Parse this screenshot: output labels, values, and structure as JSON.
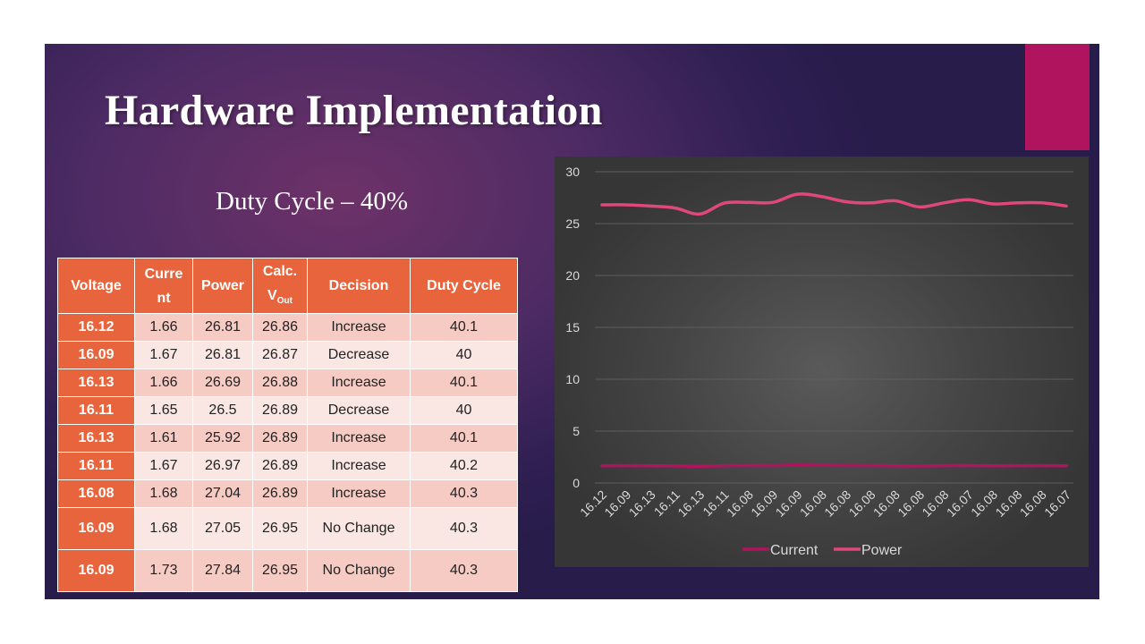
{
  "title": "Hardware Implementation",
  "subtitle": "Duty Cycle – 40%",
  "colors": {
    "accent": "#b0145f",
    "table_header": "#e8643c",
    "current_line": "#b0145f",
    "power_line": "#e0477a"
  },
  "table": {
    "headers": {
      "voltage": "Voltage",
      "current": "Current",
      "current_line1": "Curre",
      "current_line2": "nt",
      "power": "Power",
      "calc_main": "Calc.",
      "calc_v": "V",
      "calc_sub": "Out",
      "decision": "Decision",
      "duty_cycle": "Duty Cycle"
    },
    "rows": [
      [
        "16.12",
        "1.66",
        "26.81",
        "26.86",
        "Increase",
        "40.1"
      ],
      [
        "16.09",
        "1.67",
        "26.81",
        "26.87",
        "Decrease",
        "40"
      ],
      [
        "16.13",
        "1.66",
        "26.69",
        "26.88",
        "Increase",
        "40.1"
      ],
      [
        "16.11",
        "1.65",
        "26.5",
        "26.89",
        "Decrease",
        "40"
      ],
      [
        "16.13",
        "1.61",
        "25.92",
        "26.89",
        "Increase",
        "40.1"
      ],
      [
        "16.11",
        "1.67",
        "26.97",
        "26.89",
        "Increase",
        "40.2"
      ],
      [
        "16.08",
        "1.68",
        "27.04",
        "26.89",
        "Increase",
        "40.3"
      ],
      [
        "16.09",
        "1.68",
        "27.05",
        "26.95",
        "No Change",
        "40.3"
      ],
      [
        "16.09",
        "1.73",
        "27.84",
        "26.95",
        "No Change",
        "40.3"
      ]
    ]
  },
  "chart_data": {
    "type": "line",
    "categories": [
      "16.12",
      "16.09",
      "16.13",
      "16.11",
      "16.13",
      "16.11",
      "16.08",
      "16.09",
      "16.09",
      "16.08",
      "16.08",
      "16.08",
      "16.08",
      "16.08",
      "16.08",
      "16.07",
      "16.08",
      "16.08",
      "16.08",
      "16.07"
    ],
    "series": [
      {
        "name": "Current",
        "values": [
          1.66,
          1.67,
          1.66,
          1.65,
          1.61,
          1.67,
          1.68,
          1.68,
          1.73,
          1.7,
          1.69,
          1.68,
          1.66,
          1.65,
          1.67,
          1.68,
          1.66,
          1.67,
          1.67,
          1.66
        ]
      },
      {
        "name": "Power",
        "values": [
          26.81,
          26.81,
          26.69,
          26.5,
          25.92,
          26.97,
          27.04,
          27.05,
          27.84,
          27.6,
          27.1,
          27.0,
          27.2,
          26.6,
          27.0,
          27.3,
          26.9,
          27.0,
          27.0,
          26.7
        ]
      }
    ],
    "yticks": [
      "0",
      "5",
      "10",
      "15",
      "20",
      "25",
      "30"
    ],
    "ylim": [
      0,
      30
    ],
    "grid": true,
    "legend": "bottom"
  }
}
